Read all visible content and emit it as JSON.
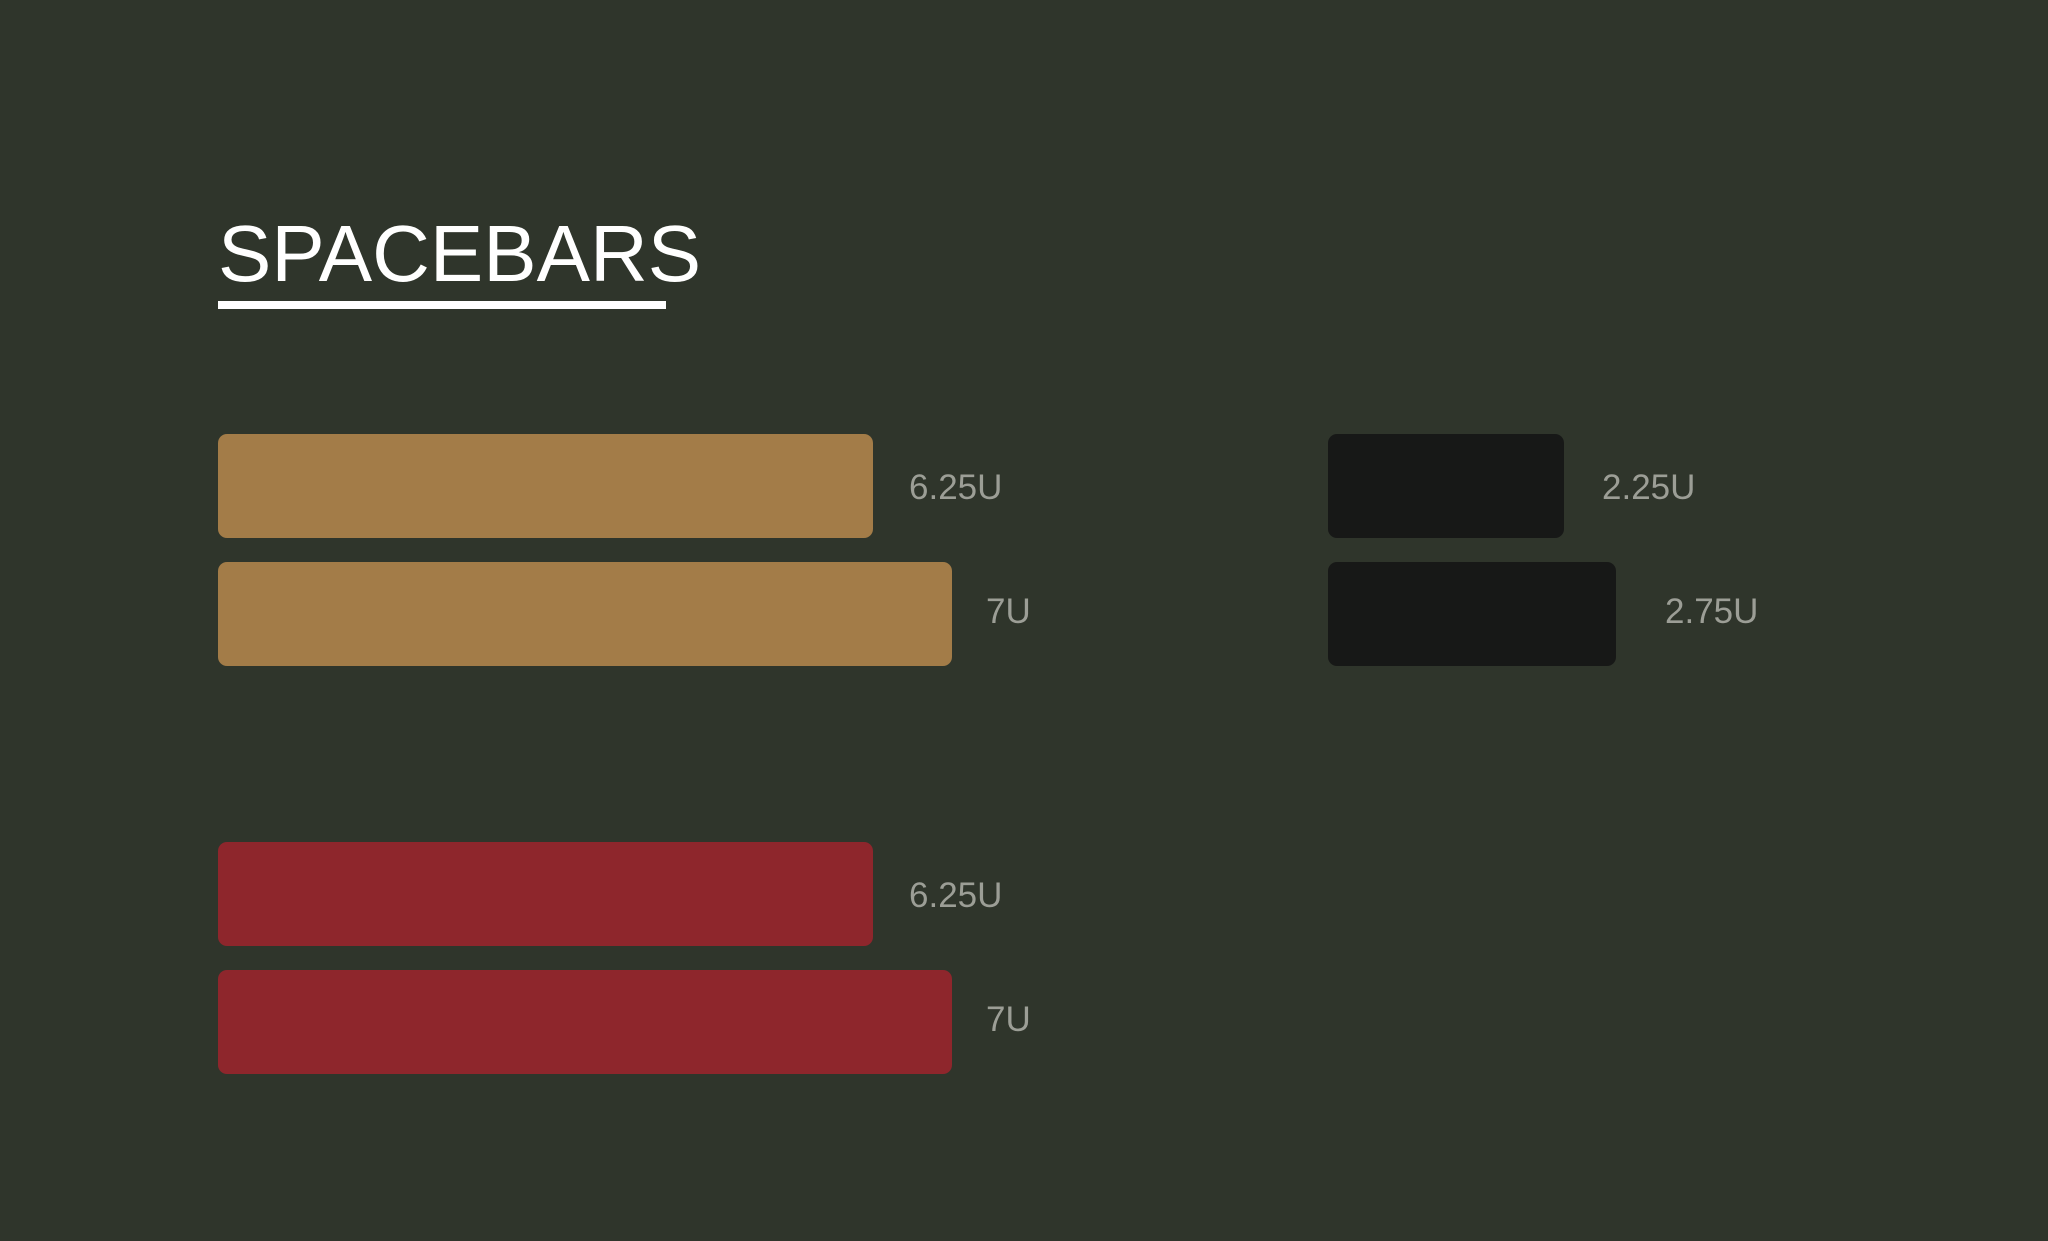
{
  "title": "SPACEBARS",
  "colors": {
    "background": "#2f352b",
    "tan": "#a37c48",
    "black": "#171817",
    "red": "#8e262c",
    "label": "#9c9e96",
    "title": "#ffffff"
  },
  "groups": {
    "tan": {
      "color_name": "tan",
      "bars": [
        {
          "size_units": 6.25,
          "label": "6.25U"
        },
        {
          "size_units": 7,
          "label": "7U"
        }
      ]
    },
    "black": {
      "color_name": "black",
      "bars": [
        {
          "size_units": 2.25,
          "label": "2.25U"
        },
        {
          "size_units": 2.75,
          "label": "2.75U"
        }
      ]
    },
    "red": {
      "color_name": "red",
      "bars": [
        {
          "size_units": 6.25,
          "label": "6.25U"
        },
        {
          "size_units": 7,
          "label": "7U"
        }
      ]
    }
  }
}
